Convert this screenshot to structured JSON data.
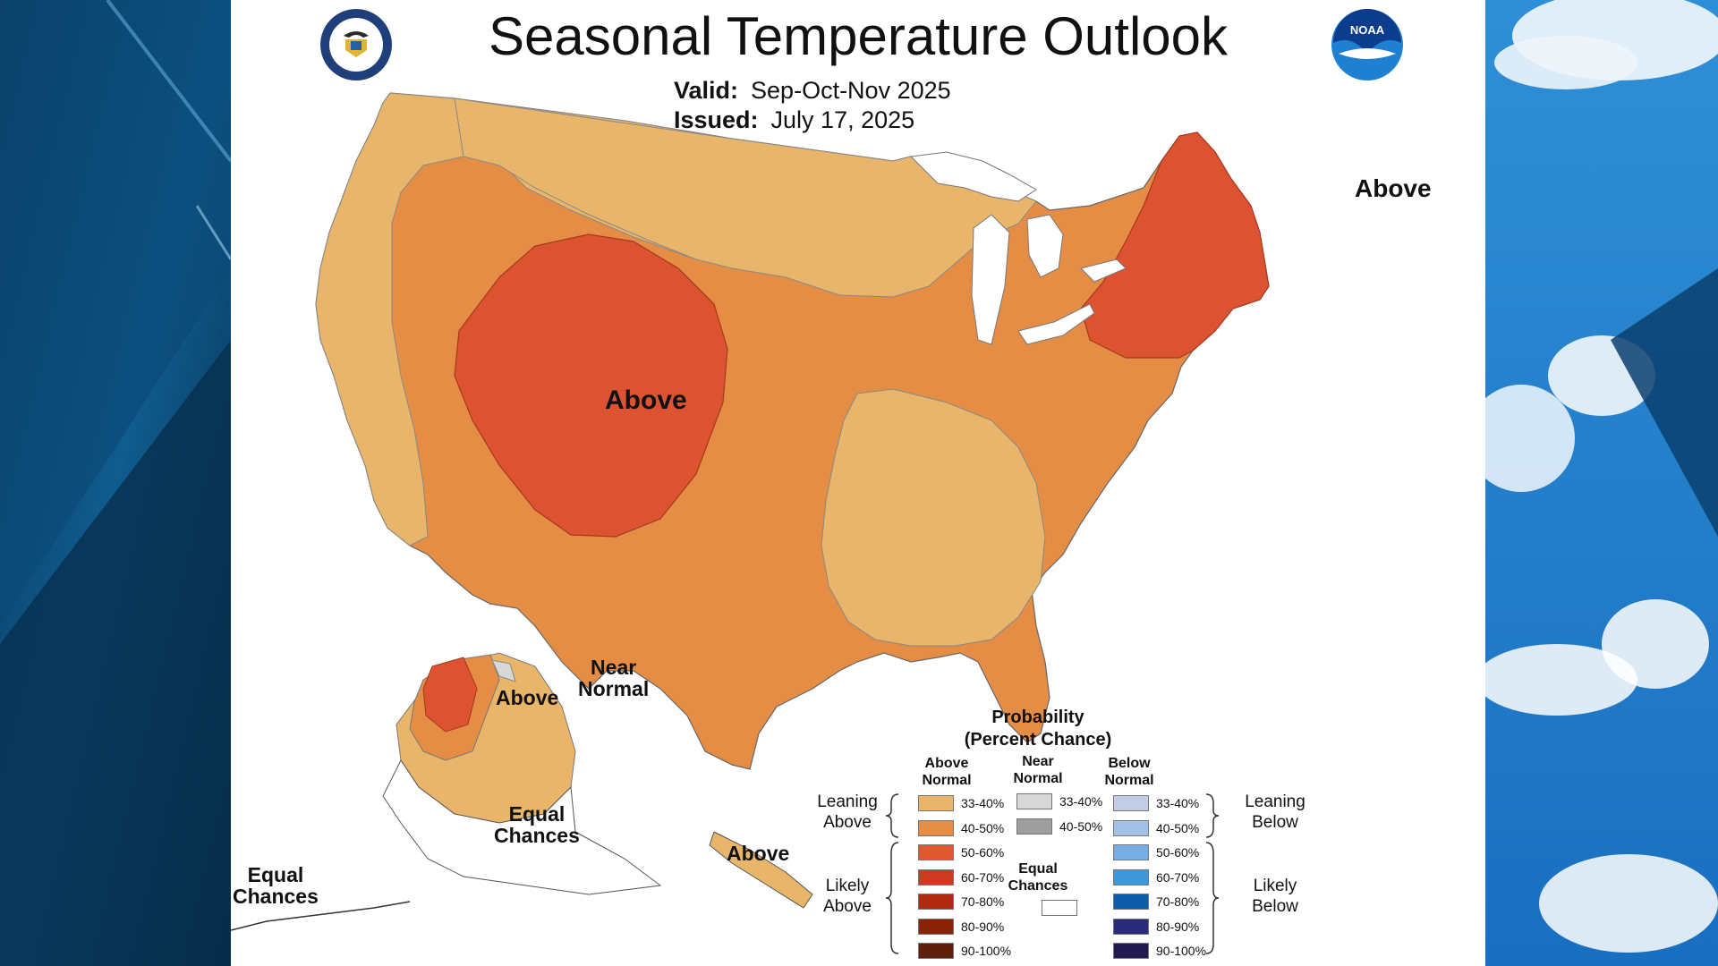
{
  "title": "Seasonal Temperature Outlook",
  "valid": {
    "label": "Valid:",
    "value": "Sep-Oct-Nov 2025"
  },
  "issued": {
    "label": "Issued:",
    "value": "July 17, 2025"
  },
  "logos": {
    "left_icon": "doc-seal-icon",
    "right_icon": "noaa-logo-icon",
    "right_text": "NOAA"
  },
  "map_labels": {
    "west_above": "Above",
    "northeast_above": "Above",
    "alaska_above": "Above",
    "alaska_near_normal_1": "Near",
    "alaska_near_normal_2": "Normal",
    "alaska_equal_1": "Equal",
    "alaska_equal_2": "Chances",
    "aleutian_equal_1": "Equal",
    "aleutian_equal_2": "Chances",
    "panhandle_above": "Above"
  },
  "colors": {
    "leaning_above_33_40": "#e8b56a",
    "leaning_above_40_50": "#e58d45",
    "likely_above_50_60": "#e0582f",
    "likely_above_60_70": "#cc3a1f",
    "likely_above_70_80": "#b32a12",
    "likely_above_80_90": "#8b2407",
    "likely_above_90_100": "#5e1f0c",
    "near_33_40": "#d8d8d8",
    "near_40_50": "#9e9e9e",
    "below_33_40": "#c2cde4",
    "below_40_50": "#a3c1e6",
    "below_50_60": "#76aee3",
    "below_60_70": "#3d97d9",
    "below_70_80": "#0e5da8",
    "below_80_90": "#2a2a7a",
    "below_90_100": "#201a4f",
    "equal_chances": "#ffffff"
  },
  "legend": {
    "title_1": "Probability",
    "title_2": "(Percent Chance)",
    "col_above_1": "Above",
    "col_above_2": "Normal",
    "col_near_1": "Near",
    "col_near_2": "Normal",
    "col_below_1": "Below",
    "col_below_2": "Normal",
    "leaning_above_1": "Leaning",
    "leaning_above_2": "Above",
    "likely_above_1": "Likely",
    "likely_above_2": "Above",
    "leaning_below_1": "Leaning",
    "leaning_below_2": "Below",
    "likely_below_1": "Likely",
    "likely_below_2": "Below",
    "equal_1": "Equal",
    "equal_2": "Chances",
    "above_ranges": [
      "33-40%",
      "40-50%",
      "50-60%",
      "60-70%",
      "70-80%",
      "80-90%",
      "90-100%"
    ],
    "near_ranges": [
      "33-40%",
      "40-50%"
    ],
    "below_ranges": [
      "33-40%",
      "40-50%",
      "50-60%",
      "60-70%",
      "70-80%",
      "80-90%",
      "90-100%"
    ]
  }
}
